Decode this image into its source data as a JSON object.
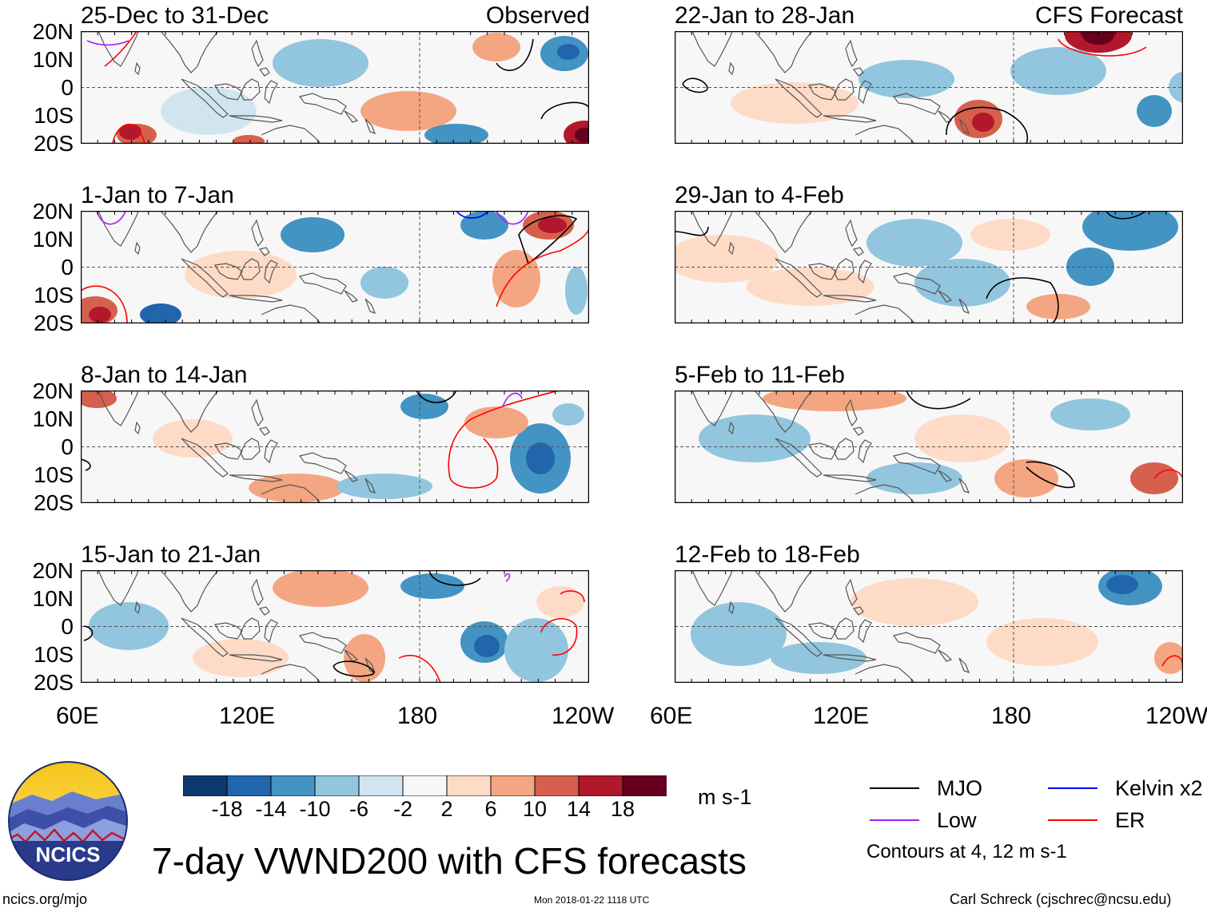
{
  "title": "7-day VWND200 with CFS forecasts",
  "units": "m s-1",
  "logo": {
    "text": "NCICS"
  },
  "columns": {
    "left_tag": "Observed",
    "right_tag": "CFS Forecast"
  },
  "lat_labels": [
    "20N",
    "10N",
    "0",
    "10S",
    "20S"
  ],
  "lon_labels": [
    "60E",
    "120E",
    "180",
    "120W"
  ],
  "panels": {
    "left": [
      {
        "period": "25-Dec to 31-Dec",
        "type": "observed"
      },
      {
        "period": "1-Jan to 7-Jan",
        "type": "observed"
      },
      {
        "period": "8-Jan to 14-Jan",
        "type": "observed"
      },
      {
        "period": "15-Jan to 21-Jan",
        "type": "observed"
      }
    ],
    "right": [
      {
        "period": "22-Jan to 28-Jan",
        "type": "forecast"
      },
      {
        "period": "29-Jan to 4-Feb",
        "type": "forecast"
      },
      {
        "period": "5-Feb to 11-Feb",
        "type": "forecast"
      },
      {
        "period": "12-Feb to 18-Feb",
        "type": "forecast"
      }
    ]
  },
  "colorbar": {
    "ticks": [
      "-18",
      "-14",
      "-10",
      "-6",
      "-2",
      "2",
      "6",
      "10",
      "14",
      "18"
    ],
    "colors": [
      "#0c3a6e",
      "#2166ac",
      "#4393c3",
      "#92c5de",
      "#d1e5f0",
      "#f7f7f7",
      "#fddbc7",
      "#f4a582",
      "#d6604d",
      "#b2182b",
      "#67001f"
    ]
  },
  "legend": {
    "items": [
      {
        "label": "MJO",
        "color": "#000000"
      },
      {
        "label": "Kelvin x2",
        "color": "#0000ff"
      },
      {
        "label": "Low",
        "color": "#a020f0"
      },
      {
        "label": "ER",
        "color": "#ff0000"
      }
    ],
    "contours_note": "Contours at 4, 12 m s-1"
  },
  "footer": {
    "website": "ncics.org/mjo",
    "timestamp": "Mon 2018-01-22 1118 UTC",
    "author": "Carl Schreck (cjschrec@ncsu.edu)"
  }
}
